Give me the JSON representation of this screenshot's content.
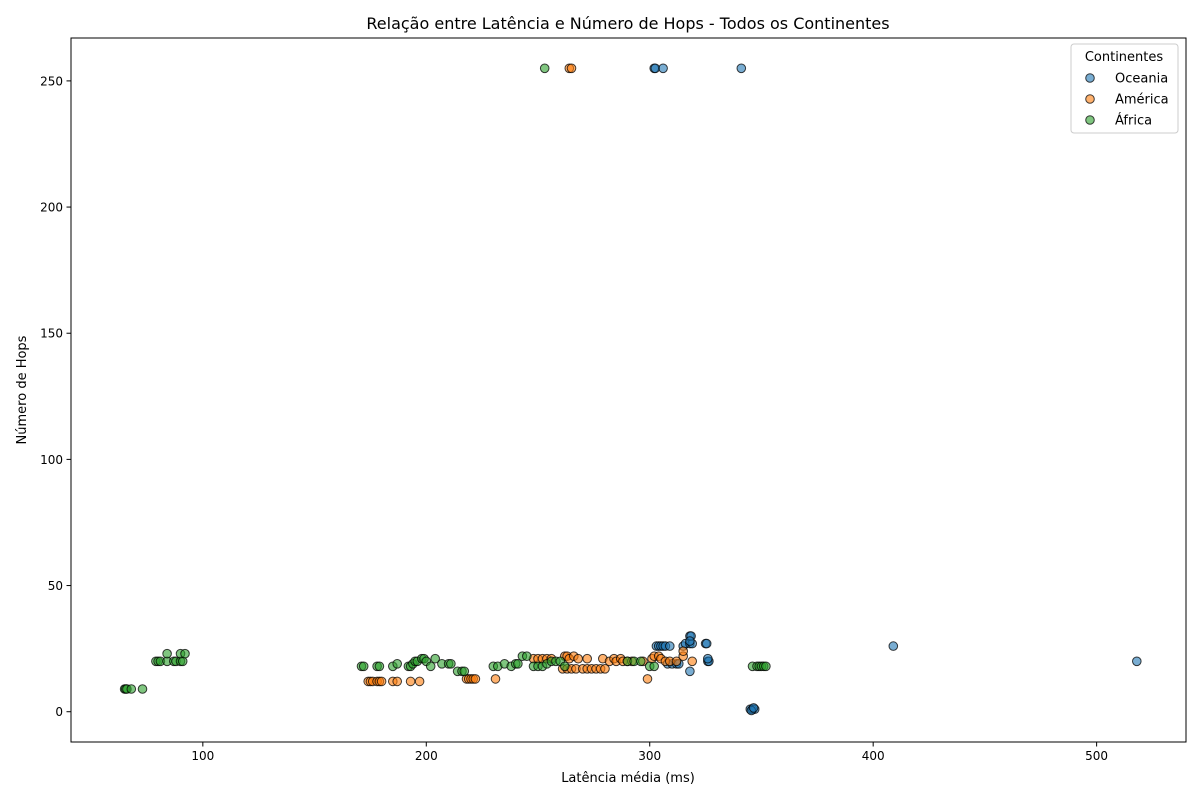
{
  "chart_data": {
    "type": "scatter",
    "title": "Relação entre Latência e Número de Hops - Todos os Continentes",
    "xlabel": "Latência média (ms)",
    "ylabel": "Número de Hops",
    "xlim": [
      41,
      540
    ],
    "ylim": [
      -12,
      267
    ],
    "x_ticks": [
      100,
      200,
      300,
      400,
      500
    ],
    "y_ticks": [
      0,
      50,
      100,
      150,
      200,
      250
    ],
    "grid": false,
    "legend": {
      "title": "Continentes",
      "position": "top-right"
    },
    "series": [
      {
        "name": "Oceania",
        "color": "#1f77b4",
        "points": [
          [
            302,
            255
          ],
          [
            302.5,
            255
          ],
          [
            306,
            255
          ],
          [
            341,
            255
          ],
          [
            303,
            26
          ],
          [
            304,
            26
          ],
          [
            305,
            26
          ],
          [
            306,
            26
          ],
          [
            307,
            26
          ],
          [
            309,
            26
          ],
          [
            315,
            26
          ],
          [
            316,
            27
          ],
          [
            318,
            27
          ],
          [
            319,
            27
          ],
          [
            325,
            27
          ],
          [
            325.5,
            27
          ],
          [
            318,
            30
          ],
          [
            318.5,
            30
          ],
          [
            318,
            28
          ],
          [
            326,
            20
          ],
          [
            326.5,
            20
          ],
          [
            326,
            21
          ],
          [
            308,
            19
          ],
          [
            310,
            19
          ],
          [
            312,
            19
          ],
          [
            313,
            19
          ],
          [
            318,
            16
          ],
          [
            345,
            1
          ],
          [
            346,
            1
          ],
          [
            347,
            1
          ],
          [
            345.5,
            0.5
          ],
          [
            346.5,
            1.5
          ],
          [
            409,
            26
          ],
          [
            518,
            20
          ]
        ]
      },
      {
        "name": "América",
        "color": "#ff7f0e",
        "points": [
          [
            264,
            255
          ],
          [
            265,
            255
          ],
          [
            174,
            12
          ],
          [
            175,
            12
          ],
          [
            176,
            12
          ],
          [
            178,
            12
          ],
          [
            179,
            12
          ],
          [
            180,
            12
          ],
          [
            185,
            12
          ],
          [
            187,
            12
          ],
          [
            193,
            12
          ],
          [
            197,
            12
          ],
          [
            218,
            13
          ],
          [
            219,
            13
          ],
          [
            220,
            13
          ],
          [
            221,
            13
          ],
          [
            222,
            13
          ],
          [
            231,
            13
          ],
          [
            299,
            13
          ],
          [
            248,
            21
          ],
          [
            250,
            21
          ],
          [
            252,
            21
          ],
          [
            254,
            21
          ],
          [
            256,
            21
          ],
          [
            262,
            22
          ],
          [
            263,
            22
          ],
          [
            264,
            21
          ],
          [
            266,
            22
          ],
          [
            268,
            21
          ],
          [
            272,
            21
          ],
          [
            261,
            17
          ],
          [
            263,
            17
          ],
          [
            265,
            17
          ],
          [
            267,
            17
          ],
          [
            270,
            17
          ],
          [
            272,
            17
          ],
          [
            274,
            17
          ],
          [
            276,
            17
          ],
          [
            278,
            17
          ],
          [
            280,
            17
          ],
          [
            279,
            21
          ],
          [
            282,
            20
          ],
          [
            284,
            21
          ],
          [
            285,
            20
          ],
          [
            287,
            21
          ],
          [
            288,
            20
          ],
          [
            290,
            20
          ],
          [
            292,
            20
          ],
          [
            297,
            20
          ],
          [
            301,
            21
          ],
          [
            302,
            22
          ],
          [
            304,
            22
          ],
          [
            305,
            21
          ],
          [
            307,
            20
          ],
          [
            309,
            20
          ],
          [
            312,
            20
          ],
          [
            315,
            22
          ],
          [
            315,
            24
          ],
          [
            319,
            20
          ]
        ]
      },
      {
        "name": "África",
        "color": "#2ca02c",
        "points": [
          [
            253,
            255
          ],
          [
            65,
            9
          ],
          [
            65.5,
            9
          ],
          [
            66,
            9
          ],
          [
            68,
            9
          ],
          [
            73,
            9
          ],
          [
            79,
            20
          ],
          [
            80,
            20
          ],
          [
            81,
            20
          ],
          [
            84,
            20
          ],
          [
            87,
            20
          ],
          [
            88,
            20
          ],
          [
            90,
            20
          ],
          [
            91,
            20
          ],
          [
            84,
            23
          ],
          [
            90,
            23
          ],
          [
            92,
            23
          ],
          [
            171,
            18
          ],
          [
            172,
            18
          ],
          [
            178,
            18
          ],
          [
            179,
            18
          ],
          [
            185,
            18
          ],
          [
            187,
            19
          ],
          [
            192,
            18
          ],
          [
            193,
            18
          ],
          [
            194,
            19
          ],
          [
            195,
            20
          ],
          [
            196,
            20
          ],
          [
            198,
            21
          ],
          [
            199,
            21
          ],
          [
            200,
            20
          ],
          [
            202,
            18
          ],
          [
            204,
            21
          ],
          [
            207,
            19
          ],
          [
            210,
            19
          ],
          [
            211,
            19
          ],
          [
            214,
            16
          ],
          [
            216,
            16
          ],
          [
            217,
            16
          ],
          [
            230,
            18
          ],
          [
            232,
            18
          ],
          [
            235,
            19
          ],
          [
            238,
            18
          ],
          [
            240,
            19
          ],
          [
            241,
            19
          ],
          [
            243,
            22
          ],
          [
            245,
            22
          ],
          [
            248,
            18
          ],
          [
            250,
            18
          ],
          [
            252,
            18
          ],
          [
            254,
            19
          ],
          [
            256,
            20
          ],
          [
            258,
            20
          ],
          [
            260,
            20
          ],
          [
            262,
            18
          ],
          [
            290,
            20
          ],
          [
            293,
            20
          ],
          [
            296,
            20
          ],
          [
            300,
            18
          ],
          [
            302,
            18
          ],
          [
            346,
            18
          ],
          [
            348,
            18
          ],
          [
            349,
            18
          ],
          [
            350,
            18
          ],
          [
            351,
            18
          ],
          [
            352,
            18
          ]
        ]
      }
    ]
  }
}
